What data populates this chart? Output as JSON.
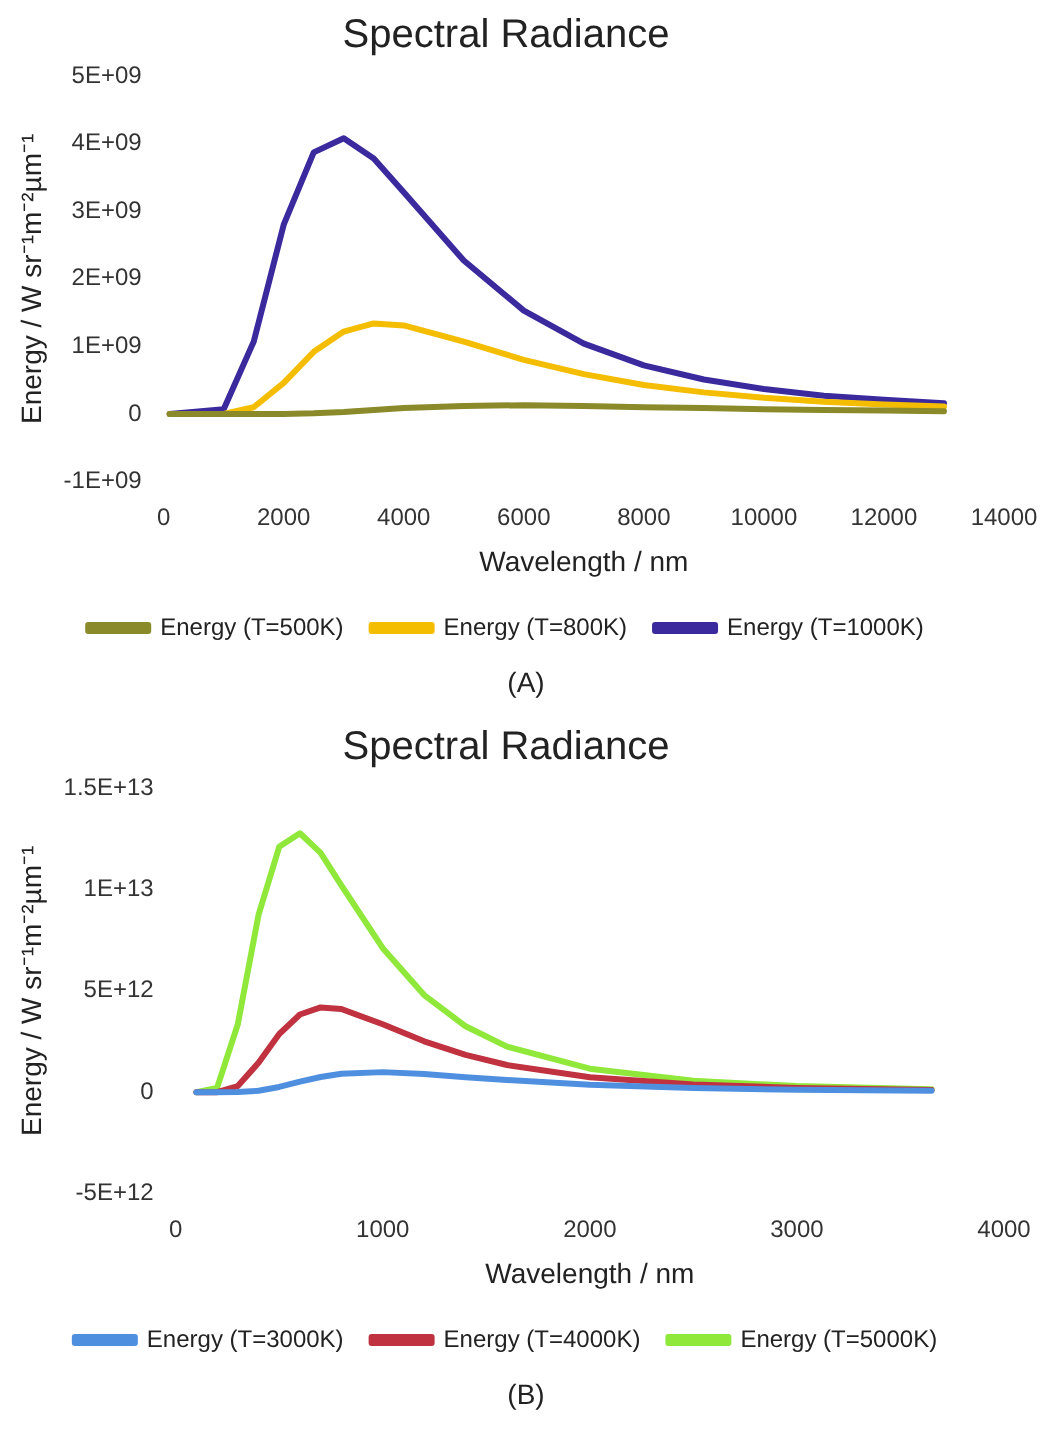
{
  "chart_data": [
    {
      "type": "line",
      "title": "Spectral Radiance",
      "xlabel": "Wavelength / nm",
      "ylabel": "Energy / W sr⁻¹m⁻²µm⁻¹",
      "annotations": [
        "(A)"
      ],
      "x": [
        100,
        1000,
        1500,
        2000,
        2500,
        3000,
        3500,
        4000,
        5000,
        6000,
        7000,
        8000,
        9000,
        10000,
        11000,
        12000,
        13000
      ],
      "series": [
        {
          "name": "Energy (T=500K)",
          "color": "#8a8a2a",
          "values": [
            0,
            0,
            0,
            0,
            10000000,
            30000000,
            60000000,
            90000000,
            120000000,
            130000000,
            120000000,
            100000000,
            90000000,
            70000000,
            60000000,
            50000000,
            40000000
          ]
        },
        {
          "name": "Energy (T=800K)",
          "color": "#f5bd00",
          "values": [
            0,
            0,
            100000000,
            460000000,
            920000000,
            1220000000,
            1340000000,
            1310000000,
            1070000000,
            800000000,
            590000000,
            430000000,
            320000000,
            240000000,
            180000000,
            140000000,
            110000000
          ]
        },
        {
          "name": "Energy (T=1000K)",
          "color": "#3b2a9e",
          "values": [
            0,
            70000000,
            1070000000,
            2800000000,
            3870000000,
            4080000000,
            3780000000,
            3280000000,
            2270000000,
            1530000000,
            1040000000,
            720000000,
            510000000,
            370000000,
            270000000,
            210000000,
            160000000
          ]
        }
      ],
      "xlim": [
        0,
        14000
      ],
      "xticks": [
        0,
        2000,
        4000,
        6000,
        8000,
        10000,
        12000,
        14000
      ],
      "ylim": [
        -1000000000,
        5000000000
      ],
      "yticks": [
        {
          "value": -1000000000,
          "label": "-1E+09"
        },
        {
          "value": 0,
          "label": "0"
        },
        {
          "value": 1000000000,
          "label": "1E+09"
        },
        {
          "value": 2000000000,
          "label": "2E+09"
        },
        {
          "value": 3000000000,
          "label": "3E+09"
        },
        {
          "value": 4000000000,
          "label": "4E+09"
        },
        {
          "value": 5000000000,
          "label": "5E+09"
        }
      ],
      "grid": false,
      "legend": "bottom",
      "marker": "none",
      "line_style": "solid"
    },
    {
      "type": "line",
      "title": "Spectral Radiance",
      "xlabel": "Wavelength / nm",
      "ylabel": "Energy / W sr⁻¹m⁻²µm⁻¹",
      "annotations": [
        "(B)"
      ],
      "x": [
        100,
        200,
        300,
        400,
        500,
        600,
        700,
        800,
        1000,
        1200,
        1400,
        1600,
        2000,
        2500,
        3000,
        3650
      ],
      "series": [
        {
          "name": "Energy (T=3000K)",
          "color": "#4f8fe0",
          "values": [
            0,
            0,
            10000000000,
            70000000000,
            260000000000,
            520000000000,
            750000000000,
            910000000000,
            990000000000,
            900000000000,
            740000000000,
            600000000000,
            370000000000,
            210000000000,
            120000000000,
            70000000000
          ]
        },
        {
          "name": "Energy (T=4000K)",
          "color": "#c0323f",
          "values": [
            0,
            0,
            300000000000,
            1450000000000,
            2870000000000,
            3830000000000,
            4180000000000,
            4100000000000,
            3350000000000,
            2510000000000,
            1840000000000,
            1340000000000,
            740000000000,
            380000000000,
            210000000000,
            110000000000
          ]
        },
        {
          "name": "Energy (T=5000K)",
          "color": "#8fe83a",
          "values": [
            0,
            210000000000,
            3350000000000,
            8740000000000,
            12100000000000,
            12770000000000,
            11800000000000,
            10200000000000,
            7100000000000,
            4790000000000,
            3250000000000,
            2250000000000,
            1160000000000,
            560000000000,
            300000000000,
            150000000000
          ]
        }
      ],
      "xlim": [
        0,
        4000
      ],
      "xticks": [
        0,
        1000,
        2000,
        3000,
        4000
      ],
      "ylim": [
        -5000000000000,
        15000000000000
      ],
      "yticks": [
        {
          "value": -5000000000000,
          "label": "-5E+12"
        },
        {
          "value": 0,
          "label": "0"
        },
        {
          "value": 5000000000000,
          "label": "5E+12"
        },
        {
          "value": 10000000000000,
          "label": "1E+13"
        },
        {
          "value": 15000000000000,
          "label": "1.5E+13"
        }
      ],
      "grid": false,
      "legend": "bottom",
      "marker": "none",
      "line_style": "solid"
    }
  ]
}
